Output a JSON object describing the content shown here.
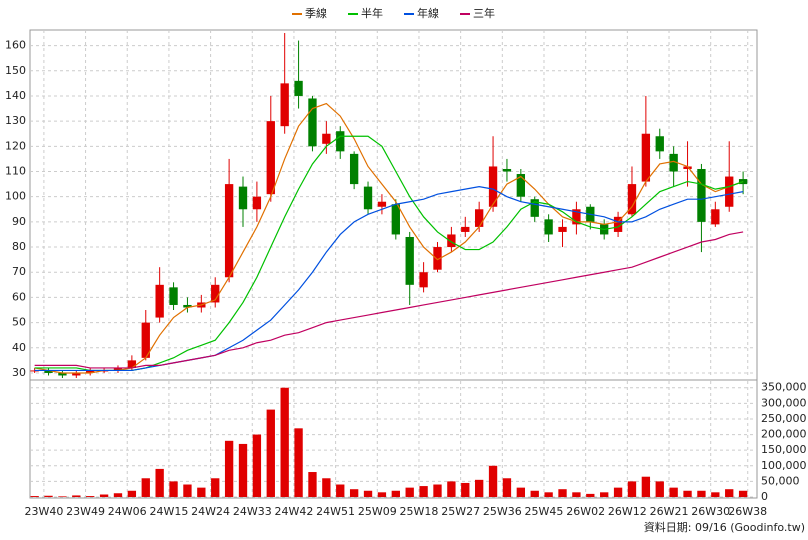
{
  "chart_data": [
    {
      "type": "candlestick",
      "legend": "top",
      "grid": true,
      "xlim": [
        0,
        157
      ],
      "xticks": [
        {
          "value": 3,
          "label": "23W40"
        },
        {
          "value": 12,
          "label": "23W49"
        },
        {
          "value": 21,
          "label": "24W06"
        },
        {
          "value": 30,
          "label": "24W15"
        },
        {
          "value": 39,
          "label": "24W24"
        },
        {
          "value": 48,
          "label": "24W33"
        },
        {
          "value": 57,
          "label": "24W42"
        },
        {
          "value": 66,
          "label": "24W51"
        },
        {
          "value": 75,
          "label": "25W09"
        },
        {
          "value": 84,
          "label": "25W18"
        },
        {
          "value": 93,
          "label": "25W27"
        },
        {
          "value": 102,
          "label": "25W36"
        },
        {
          "value": 111,
          "label": "25W45"
        },
        {
          "value": 120,
          "label": "26W02"
        },
        {
          "value": 129,
          "label": "26W12"
        },
        {
          "value": 138,
          "label": "26W21"
        },
        {
          "value": 147,
          "label": "26W30"
        },
        {
          "value": 155,
          "label": "26W38"
        }
      ],
      "ylim": [
        28,
        165
      ],
      "yticks": [
        30,
        40,
        50,
        60,
        70,
        80,
        90,
        100,
        110,
        120,
        130,
        140,
        150,
        160
      ],
      "x": [
        1,
        4,
        7,
        10,
        13,
        16,
        19,
        22,
        25,
        28,
        31,
        34,
        37,
        40,
        43,
        46,
        49,
        52,
        55,
        58,
        61,
        64,
        67,
        70,
        73,
        76,
        79,
        82,
        85,
        88,
        91,
        94,
        97,
        100,
        103,
        106,
        109,
        112,
        115,
        118,
        121,
        124,
        127,
        130,
        133,
        136,
        139,
        142,
        145,
        148,
        151,
        154
      ],
      "up_color": "#e00000",
      "down_color": "#008000",
      "open": [
        31,
        31,
        30,
        29,
        30,
        31,
        31,
        32,
        36,
        52,
        64,
        57,
        56,
        58,
        68,
        104,
        95,
        101,
        128,
        146,
        139,
        121,
        126,
        117,
        104,
        96,
        97,
        84,
        64,
        71,
        80,
        86,
        88,
        96,
        111,
        109,
        99,
        91,
        86,
        89,
        96,
        89,
        86,
        93,
        106,
        124,
        117,
        111,
        111,
        89,
        96,
        107
      ],
      "high": [
        32,
        32,
        31,
        31,
        32,
        32,
        33,
        37,
        55,
        72,
        66,
        60,
        61,
        68,
        115,
        108,
        106,
        140,
        165,
        162,
        140,
        130,
        128,
        118,
        106,
        101,
        99,
        86,
        74,
        82,
        88,
        92,
        98,
        124,
        115,
        111,
        100,
        93,
        91,
        98,
        97,
        91,
        94,
        112,
        140,
        127,
        120,
        122,
        113,
        98,
        122,
        110
      ],
      "low": [
        30,
        29,
        28,
        28,
        29,
        30,
        30,
        31,
        35,
        50,
        55,
        54,
        54,
        56,
        66,
        88,
        90,
        98,
        125,
        135,
        118,
        117,
        115,
        103,
        93,
        93,
        83,
        57,
        62,
        70,
        78,
        84,
        86,
        94,
        106,
        98,
        90,
        82,
        80,
        85,
        87,
        83,
        84,
        92,
        104,
        115,
        104,
        104,
        78,
        88,
        94,
        101
      ],
      "close": [
        31,
        30,
        29,
        30,
        31,
        31,
        32,
        35,
        50,
        65,
        57,
        56,
        58,
        65,
        105,
        95,
        100,
        130,
        145,
        140,
        120,
        125,
        118,
        105,
        95,
        98,
        85,
        65,
        70,
        80,
        85,
        88,
        95,
        112,
        110,
        100,
        92,
        85,
        88,
        95,
        90,
        85,
        92,
        105,
        125,
        118,
        110,
        112,
        90,
        95,
        108,
        105
      ],
      "series": [
        {
          "name": "季線",
          "color": "#e07000",
          "values": [
            32,
            31,
            30,
            30,
            30,
            31,
            31,
            32,
            36,
            45,
            52,
            56,
            57,
            59,
            68,
            78,
            88,
            100,
            115,
            128,
            135,
            137,
            132,
            123,
            112,
            105,
            98,
            88,
            80,
            75,
            78,
            82,
            88,
            97,
            105,
            108,
            103,
            97,
            92,
            90,
            90,
            89,
            90,
            96,
            106,
            113,
            114,
            112,
            105,
            102,
            104,
            106
          ]
        },
        {
          "name": "半年",
          "color": "#00c000",
          "values": [
            32,
            32,
            32,
            32,
            31,
            31,
            31,
            31,
            32,
            34,
            36,
            39,
            41,
            43,
            50,
            58,
            68,
            80,
            92,
            103,
            113,
            120,
            124,
            124,
            124,
            120,
            110,
            100,
            92,
            86,
            82,
            79,
            79,
            82,
            88,
            95,
            98,
            97,
            94,
            90,
            88,
            87,
            88,
            92,
            97,
            102,
            104,
            106,
            105,
            103,
            104,
            106
          ]
        },
        {
          "name": "年線",
          "color": "#0050e0",
          "values": [
            31,
            31,
            31,
            31,
            31,
            31,
            31,
            31,
            32,
            33,
            34,
            35,
            36,
            37,
            40,
            43,
            47,
            51,
            57,
            63,
            70,
            78,
            85,
            90,
            93,
            95,
            97,
            98,
            99,
            101,
            102,
            103,
            104,
            103,
            100,
            98,
            97,
            96,
            95,
            94,
            93,
            92,
            90,
            90,
            92,
            95,
            97,
            99,
            99,
            100,
            101,
            102
          ]
        },
        {
          "name": "三年",
          "color": "#c00060",
          "values": [
            33,
            33,
            33,
            33,
            32,
            32,
            32,
            32,
            33,
            33,
            34,
            35,
            36,
            37,
            39,
            40,
            42,
            43,
            45,
            46,
            48,
            50,
            51,
            52,
            53,
            54,
            55,
            56,
            57,
            58,
            59,
            60,
            61,
            62,
            63,
            64,
            65,
            66,
            67,
            68,
            69,
            70,
            71,
            72,
            74,
            76,
            78,
            80,
            82,
            83,
            85,
            86
          ]
        }
      ]
    },
    {
      "type": "bar",
      "grid": true,
      "color": "#e00000",
      "ylim": [
        0,
        362000
      ],
      "yticks": [
        0,
        {
          "value": 50000,
          "label": "50,000"
        },
        {
          "value": 100000,
          "label": "100,000"
        },
        {
          "value": 150000,
          "label": "150,000"
        },
        {
          "value": 200000,
          "label": "200,000"
        },
        {
          "value": 250000,
          "label": "250,000"
        },
        {
          "value": 300000,
          "label": "300,000"
        },
        {
          "value": 350000,
          "label": "350,000"
        }
      ],
      "x": [
        1,
        4,
        7,
        10,
        13,
        16,
        19,
        22,
        25,
        28,
        31,
        34,
        37,
        40,
        43,
        46,
        49,
        52,
        55,
        58,
        61,
        64,
        67,
        70,
        73,
        76,
        79,
        82,
        85,
        88,
        91,
        94,
        97,
        100,
        103,
        106,
        109,
        112,
        115,
        118,
        121,
        124,
        127,
        130,
        133,
        136,
        139,
        142,
        145,
        148,
        151,
        154
      ],
      "values": [
        3000,
        4000,
        2000,
        5000,
        3000,
        8000,
        12000,
        20000,
        60000,
        90000,
        50000,
        40000,
        30000,
        60000,
        180000,
        170000,
        200000,
        280000,
        350000,
        220000,
        80000,
        60000,
        40000,
        25000,
        20000,
        15000,
        20000,
        30000,
        35000,
        40000,
        50000,
        45000,
        55000,
        100000,
        60000,
        30000,
        20000,
        15000,
        25000,
        15000,
        10000,
        15000,
        30000,
        50000,
        65000,
        50000,
        30000,
        20000,
        20000,
        15000,
        25000,
        20000
      ],
      "source": "資料日期: 09/16  (Goodinfo.tw)"
    }
  ]
}
